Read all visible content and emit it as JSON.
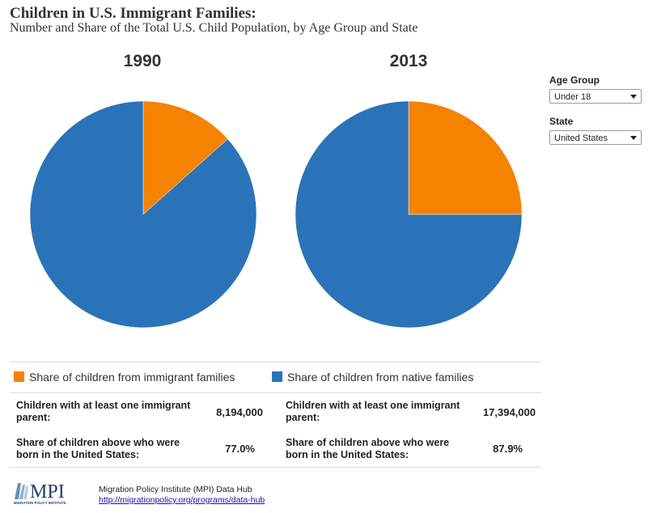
{
  "header": {
    "title": "Children in U.S. Immigrant Families:",
    "subtitle": "Number and Share of the Total U.S. Child Population, by Age Group and State"
  },
  "controls": {
    "age_group_label": "Age Group",
    "age_group_value": "Under 18",
    "state_label": "State",
    "state_value": "United States"
  },
  "colors": {
    "immigrant": "#F58200",
    "native": "#2B73B8"
  },
  "legend": {
    "immigrant": "Share of children from immigrant families",
    "native": "Share of children from native families"
  },
  "chart_data": [
    {
      "type": "pie",
      "title": "1990",
      "labels": [
        "Share of children from immigrant families",
        "Share of children from native families"
      ],
      "values": [
        13.4,
        86.6
      ],
      "unit": "percent"
    },
    {
      "type": "pie",
      "title": "2013",
      "labels": [
        "Share of children from immigrant families",
        "Share of children from native families"
      ],
      "values": [
        25.0,
        75.0
      ],
      "unit": "percent"
    }
  ],
  "stats": [
    {
      "year": "1990",
      "parent_label": "Children with at least one immigrant parent:",
      "parent_value": "8,194,000",
      "born_label": "Share of children above who were born in the United States:",
      "born_value": "77.0%"
    },
    {
      "year": "2013",
      "parent_label": "Children with at least one immigrant parent:",
      "parent_value": "17,394,000",
      "born_label": "Share of children above who were born in the United States:",
      "born_value": "87.9%"
    }
  ],
  "footer": {
    "logo_text": "MPI",
    "logo_subtext": "MIGRATION POLICY INSTITUTE",
    "source": "Migration Policy Institute (MPI) Data Hub",
    "link": "http://migrationpolicy.org/programs/data-hub"
  }
}
